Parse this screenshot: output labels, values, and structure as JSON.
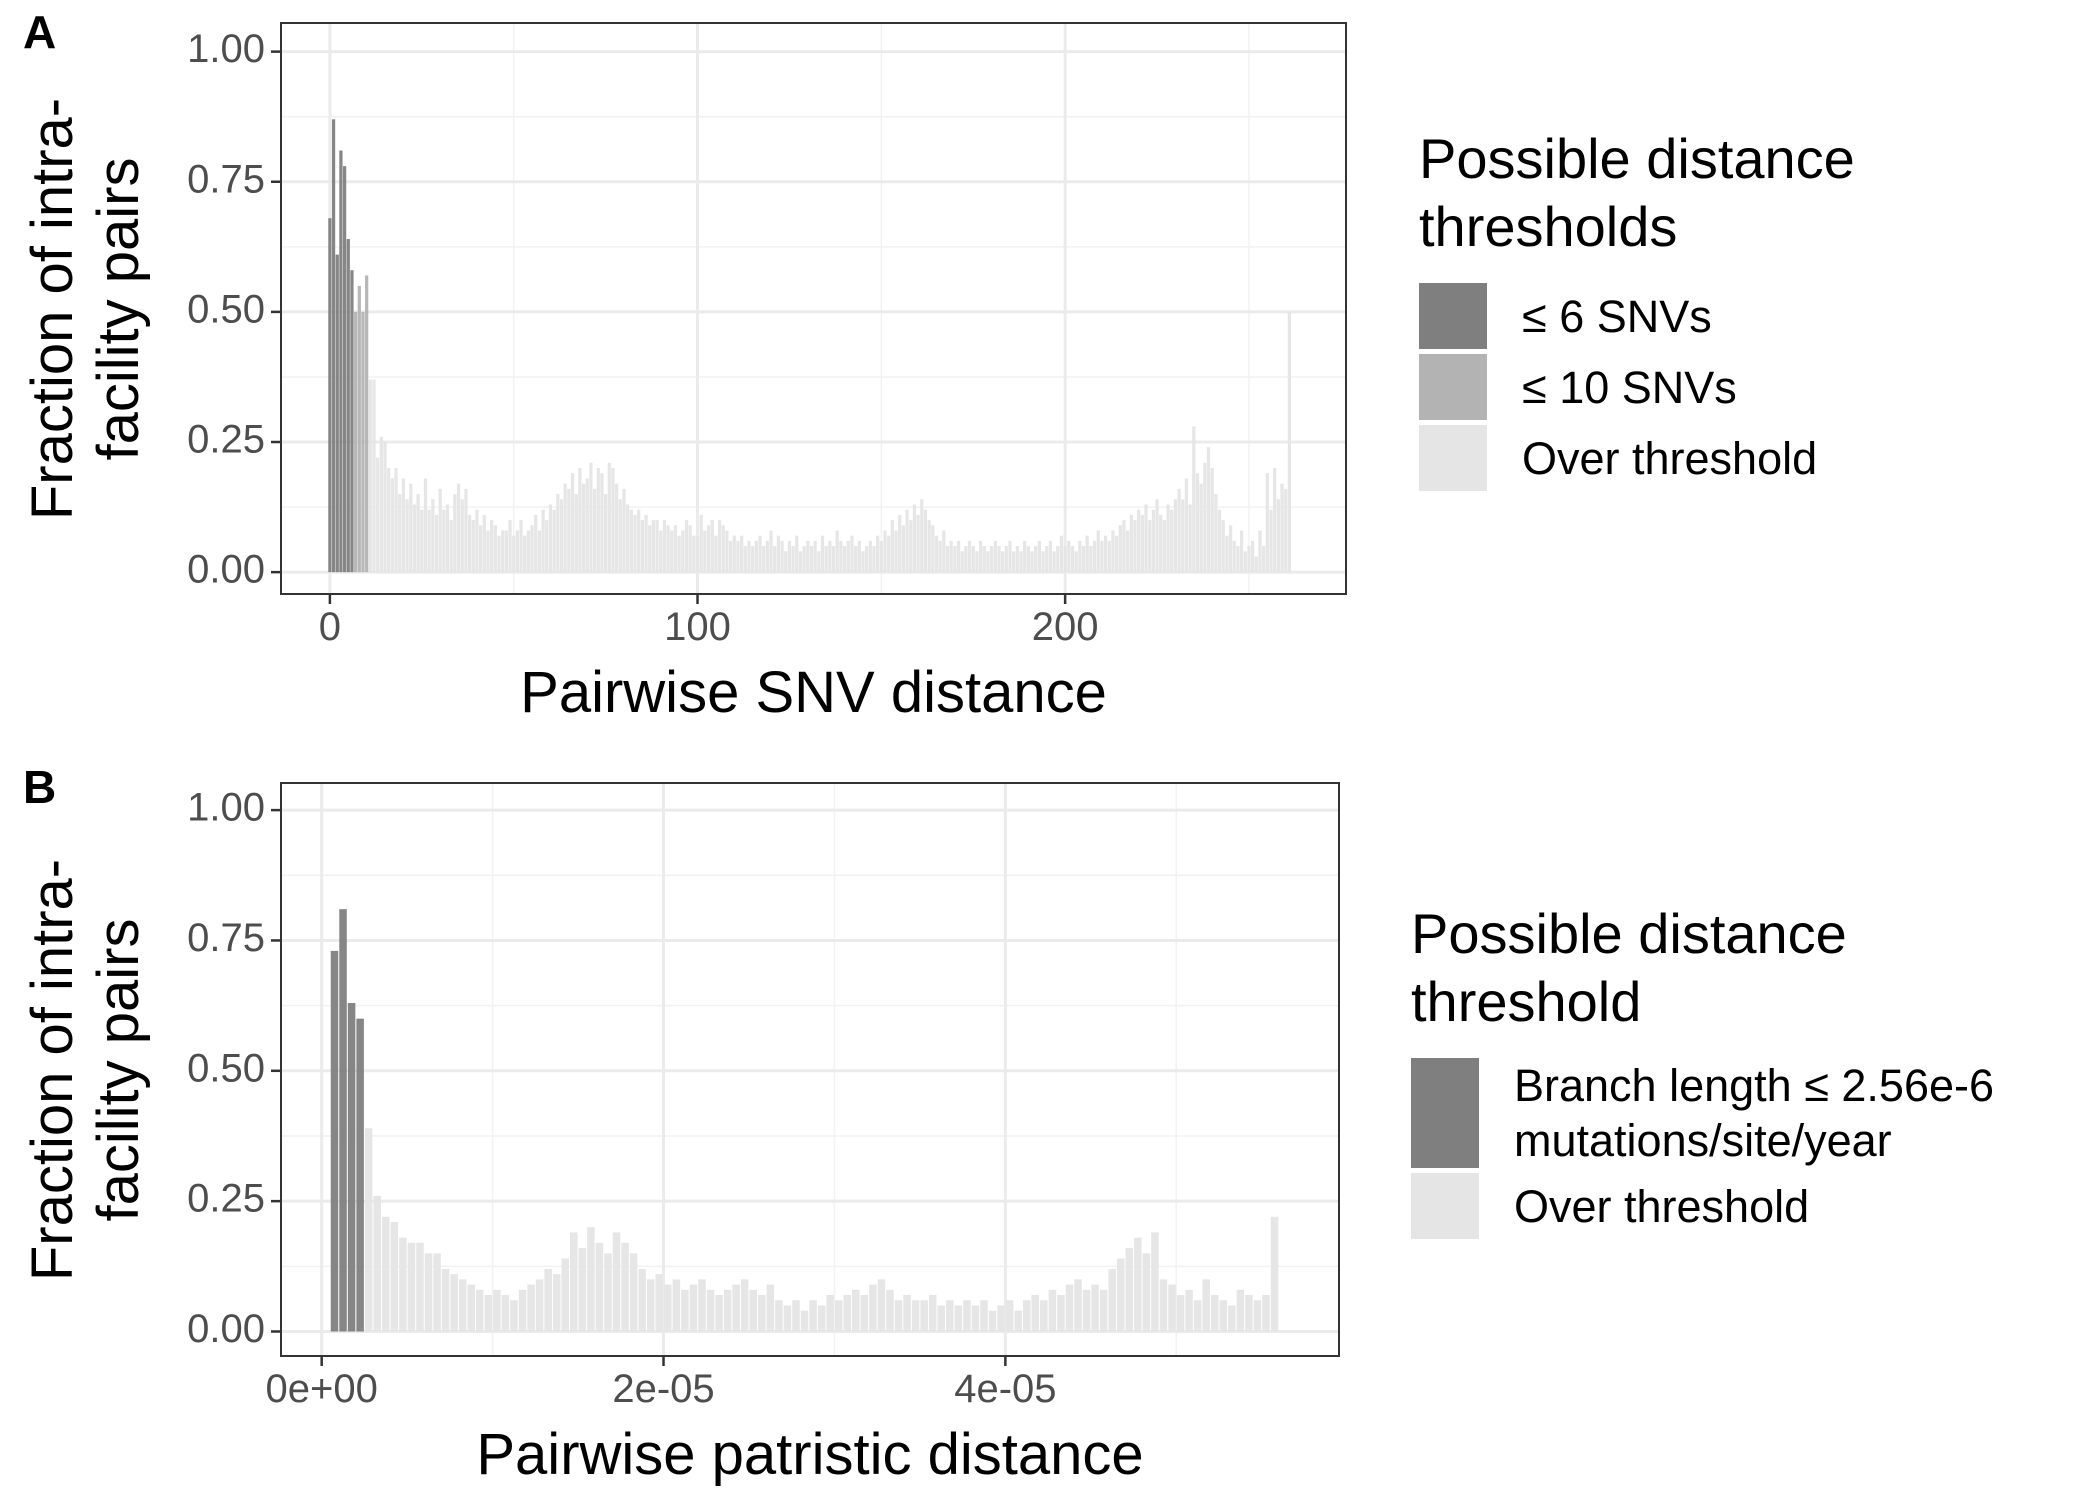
{
  "chart_data": [
    {
      "type": "bar",
      "panel_label": "A",
      "x_label": "Pairwise SNV distance",
      "y_label": "Fraction of intra-facility pairs",
      "legend_title": "Possible distance thresholds",
      "legend": "right",
      "grid": true,
      "minor_grid": true,
      "xlim": [
        -13.3,
        276.4
      ],
      "ylim": [
        -0.042,
        1.055
      ],
      "xticks": [
        0,
        100,
        200
      ],
      "yticks": [
        {
          "value": 0,
          "label": "0.00"
        },
        {
          "value": 0.25,
          "label": "0.25"
        },
        {
          "value": 0.5,
          "label": "0.50"
        },
        {
          "value": 0.75,
          "label": "0.75"
        },
        {
          "value": 1,
          "label": "1.00"
        }
      ],
      "series": [
        {
          "name": "≤ 6 SNVs",
          "color": "#7f7f7f",
          "x": [
            0,
            1,
            2,
            3,
            4,
            5,
            6
          ],
          "values": [
            0.68,
            0.87,
            0.61,
            0.81,
            0.78,
            0.64,
            0.58
          ]
        },
        {
          "name": "≤ 10 SNVs",
          "color": "#b3b3b3",
          "x": [
            7,
            8,
            9,
            10
          ],
          "values": [
            0.5,
            0.55,
            0.5,
            0.57
          ]
        },
        {
          "name": "Over threshold",
          "color": "#e5e5e5",
          "x": [
            11,
            12,
            13,
            14,
            15,
            16,
            17,
            18,
            19,
            20,
            21,
            22,
            23,
            24,
            25,
            26,
            27,
            28,
            29,
            30,
            31,
            32,
            33,
            34,
            35,
            36,
            37,
            38,
            39,
            40,
            41,
            42,
            43,
            44,
            45,
            46,
            47,
            48,
            49,
            50,
            51,
            52,
            53,
            54,
            55,
            56,
            57,
            58,
            59,
            60,
            61,
            62,
            63,
            64,
            65,
            66,
            67,
            68,
            69,
            70,
            71,
            72,
            73,
            74,
            75,
            76,
            77,
            78,
            79,
            80,
            81,
            82,
            83,
            84,
            85,
            86,
            87,
            88,
            89,
            90,
            91,
            92,
            93,
            94,
            95,
            96,
            97,
            98,
            99,
            100,
            101,
            102,
            103,
            104,
            105,
            106,
            107,
            108,
            109,
            110,
            111,
            112,
            113,
            114,
            115,
            116,
            117,
            118,
            119,
            120,
            121,
            122,
            123,
            124,
            125,
            126,
            127,
            128,
            129,
            130,
            131,
            132,
            133,
            134,
            135,
            136,
            137,
            138,
            139,
            140,
            141,
            142,
            143,
            144,
            145,
            146,
            147,
            148,
            149,
            150,
            151,
            152,
            153,
            154,
            155,
            156,
            157,
            158,
            159,
            160,
            161,
            162,
            163,
            164,
            165,
            166,
            167,
            168,
            169,
            170,
            171,
            172,
            173,
            174,
            175,
            176,
            177,
            178,
            179,
            180,
            181,
            182,
            183,
            184,
            185,
            186,
            187,
            188,
            189,
            190,
            191,
            192,
            193,
            194,
            195,
            196,
            197,
            198,
            199,
            200,
            201,
            202,
            203,
            204,
            205,
            206,
            207,
            208,
            209,
            210,
            211,
            212,
            213,
            214,
            215,
            216,
            217,
            218,
            219,
            220,
            221,
            222,
            223,
            224,
            225,
            226,
            227,
            228,
            229,
            230,
            231,
            232,
            233,
            234,
            235,
            236,
            237,
            238,
            239,
            240,
            241,
            242,
            243,
            244,
            245,
            246,
            247,
            248,
            249,
            250,
            251,
            252,
            253,
            254,
            255,
            256,
            257,
            258,
            259,
            260,
            261
          ],
          "values": [
            0.37,
            0.37,
            0.22,
            0.26,
            0.25,
            0.2,
            0.18,
            0.2,
            0.15,
            0.18,
            0.14,
            0.17,
            0.13,
            0.15,
            0.12,
            0.18,
            0.12,
            0.14,
            0.11,
            0.16,
            0.12,
            0.13,
            0.1,
            0.15,
            0.17,
            0.14,
            0.16,
            0.11,
            0.1,
            0.12,
            0.09,
            0.11,
            0.08,
            0.1,
            0.09,
            0.07,
            0.08,
            0.08,
            0.1,
            0.07,
            0.08,
            0.1,
            0.07,
            0.08,
            0.09,
            0.11,
            0.08,
            0.12,
            0.1,
            0.13,
            0.12,
            0.15,
            0.14,
            0.17,
            0.16,
            0.19,
            0.15,
            0.2,
            0.17,
            0.18,
            0.21,
            0.16,
            0.2,
            0.19,
            0.15,
            0.21,
            0.2,
            0.17,
            0.14,
            0.16,
            0.13,
            0.12,
            0.11,
            0.12,
            0.1,
            0.11,
            0.09,
            0.1,
            0.1,
            0.08,
            0.1,
            0.09,
            0.08,
            0.09,
            0.07,
            0.08,
            0.1,
            0.09,
            0.07,
            0.07,
            0.11,
            0.08,
            0.09,
            0.1,
            0.07,
            0.1,
            0.09,
            0.08,
            0.06,
            0.07,
            0.06,
            0.07,
            0.05,
            0.06,
            0.05,
            0.06,
            0.07,
            0.05,
            0.06,
            0.08,
            0.05,
            0.07,
            0.06,
            0.04,
            0.06,
            0.05,
            0.07,
            0.04,
            0.05,
            0.06,
            0.05,
            0.06,
            0.04,
            0.07,
            0.05,
            0.06,
            0.05,
            0.08,
            0.06,
            0.05,
            0.06,
            0.07,
            0.05,
            0.06,
            0.04,
            0.05,
            0.06,
            0.05,
            0.07,
            0.06,
            0.08,
            0.07,
            0.1,
            0.08,
            0.11,
            0.09,
            0.12,
            0.1,
            0.13,
            0.11,
            0.14,
            0.12,
            0.1,
            0.09,
            0.07,
            0.06,
            0.08,
            0.05,
            0.06,
            0.05,
            0.06,
            0.04,
            0.05,
            0.06,
            0.05,
            0.04,
            0.06,
            0.05,
            0.04,
            0.05,
            0.06,
            0.05,
            0.04,
            0.05,
            0.06,
            0.04,
            0.05,
            0.04,
            0.06,
            0.05,
            0.04,
            0.05,
            0.06,
            0.04,
            0.05,
            0.06,
            0.04,
            0.05,
            0.07,
            0.05,
            0.06,
            0.05,
            0.04,
            0.06,
            0.05,
            0.07,
            0.05,
            0.06,
            0.08,
            0.06,
            0.07,
            0.06,
            0.08,
            0.07,
            0.09,
            0.1,
            0.08,
            0.11,
            0.1,
            0.12,
            0.11,
            0.13,
            0.1,
            0.12,
            0.14,
            0.11,
            0.1,
            0.13,
            0.12,
            0.14,
            0.16,
            0.14,
            0.18,
            0.13,
            0.28,
            0.19,
            0.17,
            0.21,
            0.24,
            0.2,
            0.15,
            0.12,
            0.1,
            0.07,
            0.09,
            0.06,
            0.05,
            0.08,
            0.04,
            0.05,
            0.06,
            0.03,
            0.08,
            0.05,
            0.19,
            0.12,
            0.2,
            0.14,
            0.17,
            0.16,
            0.5
          ]
        }
      ]
    },
    {
      "type": "bar",
      "panel_label": "B",
      "x_label": "Pairwise patristic distance",
      "y_label": "Fraction of intra-facility pairs",
      "legend_title": "Possible distance threshold",
      "legend": "right",
      "grid": true,
      "minor_grid": true,
      "xlim": [
        -2.38e-06,
        5.952e-05
      ],
      "ylim": [
        -0.047,
        1.052
      ],
      "xticks": [
        {
          "value": 0,
          "label": "0e+00"
        },
        {
          "value": 2e-05,
          "label": "2e-05"
        },
        {
          "value": 4e-05,
          "label": "4e-05"
        }
      ],
      "yticks": [
        {
          "value": 0,
          "label": "0.00"
        },
        {
          "value": 0.25,
          "label": "0.25"
        },
        {
          "value": 0.5,
          "label": "0.50"
        },
        {
          "value": 0.75,
          "label": "0.75"
        },
        {
          "value": 1,
          "label": "1.00"
        }
      ],
      "series": [
        {
          "name": "Branch length ≤ 2.56e-6 mutations/site/year",
          "color": "#7f7f7f",
          "x": [
            7.5e-07,
            1.25e-06,
            1.75e-06,
            2.25e-06
          ],
          "values": [
            0.73,
            0.81,
            0.63,
            0.6
          ]
        },
        {
          "name": "Over threshold",
          "color": "#e5e5e5",
          "x": [
            2.75e-06,
            3.25e-06,
            3.75e-06,
            4.25e-06,
            4.75e-06,
            5.25e-06,
            5.75e-06,
            6.25e-06,
            6.75e-06,
            7.25e-06,
            7.75e-06,
            8.25e-06,
            8.75e-06,
            9.25e-06,
            9.75e-06,
            1.025e-05,
            1.075e-05,
            1.125e-05,
            1.175e-05,
            1.225e-05,
            1.275e-05,
            1.325e-05,
            1.375e-05,
            1.425e-05,
            1.475e-05,
            1.525e-05,
            1.575e-05,
            1.625e-05,
            1.675e-05,
            1.725e-05,
            1.775e-05,
            1.825e-05,
            1.875e-05,
            1.925e-05,
            1.975e-05,
            2.025e-05,
            2.075e-05,
            2.125e-05,
            2.175e-05,
            2.225e-05,
            2.275e-05,
            2.325e-05,
            2.375e-05,
            2.425e-05,
            2.475e-05,
            2.525e-05,
            2.575e-05,
            2.625e-05,
            2.675e-05,
            2.725e-05,
            2.775e-05,
            2.825e-05,
            2.875e-05,
            2.925e-05,
            2.975e-05,
            3.025e-05,
            3.075e-05,
            3.125e-05,
            3.175e-05,
            3.225e-05,
            3.275e-05,
            3.325e-05,
            3.375e-05,
            3.425e-05,
            3.475e-05,
            3.525e-05,
            3.575e-05,
            3.625e-05,
            3.675e-05,
            3.725e-05,
            3.775e-05,
            3.825e-05,
            3.875e-05,
            3.925e-05,
            3.975e-05,
            4.025e-05,
            4.075e-05,
            4.125e-05,
            4.175e-05,
            4.225e-05,
            4.275e-05,
            4.325e-05,
            4.375e-05,
            4.425e-05,
            4.475e-05,
            4.525e-05,
            4.575e-05,
            4.625e-05,
            4.675e-05,
            4.725e-05,
            4.775e-05,
            4.825e-05,
            4.875e-05,
            4.925e-05,
            4.975e-05,
            5.025e-05,
            5.075e-05,
            5.125e-05,
            5.175e-05,
            5.225e-05,
            5.275e-05,
            5.325e-05,
            5.375e-05,
            5.425e-05,
            5.475e-05,
            5.525e-05,
            5.575e-05
          ],
          "values": [
            0.39,
            0.26,
            0.22,
            0.21,
            0.18,
            0.17,
            0.17,
            0.15,
            0.15,
            0.12,
            0.11,
            0.1,
            0.09,
            0.08,
            0.07,
            0.08,
            0.07,
            0.06,
            0.08,
            0.09,
            0.1,
            0.12,
            0.11,
            0.14,
            0.19,
            0.16,
            0.2,
            0.17,
            0.15,
            0.19,
            0.17,
            0.15,
            0.12,
            0.1,
            0.11,
            0.09,
            0.1,
            0.08,
            0.09,
            0.1,
            0.08,
            0.07,
            0.08,
            0.09,
            0.1,
            0.08,
            0.07,
            0.09,
            0.06,
            0.05,
            0.06,
            0.04,
            0.06,
            0.05,
            0.07,
            0.06,
            0.07,
            0.08,
            0.07,
            0.09,
            0.1,
            0.08,
            0.06,
            0.07,
            0.06,
            0.06,
            0.07,
            0.05,
            0.06,
            0.05,
            0.06,
            0.05,
            0.06,
            0.04,
            0.05,
            0.06,
            0.04,
            0.06,
            0.07,
            0.06,
            0.08,
            0.07,
            0.09,
            0.1,
            0.08,
            0.09,
            0.08,
            0.12,
            0.14,
            0.16,
            0.18,
            0.15,
            0.19,
            0.1,
            0.09,
            0.07,
            0.08,
            0.06,
            0.1,
            0.07,
            0.06,
            0.05,
            0.08,
            0.07,
            0.06,
            0.07,
            0.22
          ]
        }
      ]
    }
  ]
}
